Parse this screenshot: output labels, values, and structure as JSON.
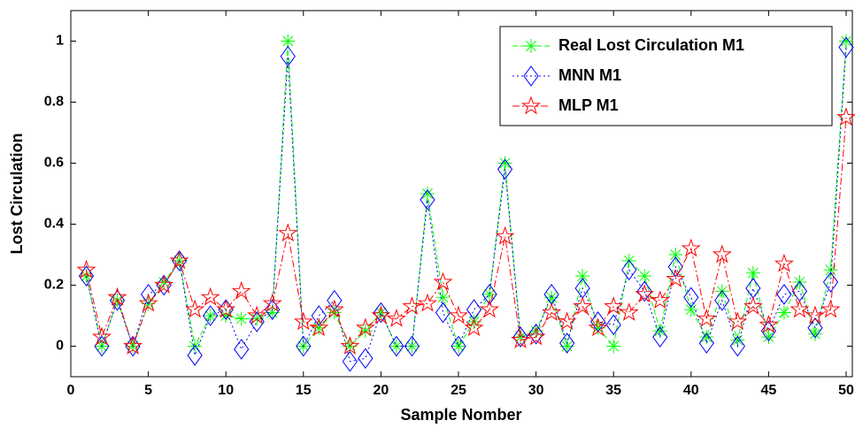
{
  "chart_data": {
    "type": "line",
    "x_label": "Sample Nomber",
    "y_label": "Lost Circulation",
    "x": [
      1,
      2,
      3,
      4,
      5,
      6,
      7,
      8,
      9,
      10,
      11,
      12,
      13,
      14,
      15,
      16,
      17,
      18,
      19,
      20,
      21,
      22,
      23,
      24,
      25,
      26,
      27,
      28,
      29,
      30,
      31,
      32,
      33,
      34,
      35,
      36,
      37,
      38,
      39,
      40,
      41,
      42,
      43,
      44,
      45,
      46,
      47,
      48,
      49,
      50
    ],
    "series": [
      {
        "name": "Real Lost Circulation M1",
        "color": "#00ff00",
        "marker": "asterisk",
        "dash": "6 3",
        "values": [
          0.23,
          0.0,
          0.15,
          0.0,
          0.14,
          0.21,
          0.28,
          0.0,
          0.1,
          0.1,
          0.09,
          0.09,
          0.11,
          1.0,
          0.0,
          0.06,
          0.11,
          0.0,
          0.05,
          0.11,
          0.0,
          0.0,
          0.5,
          0.16,
          0.0,
          0.08,
          0.17,
          0.6,
          0.03,
          0.05,
          0.16,
          0.0,
          0.23,
          0.06,
          0.0,
          0.28,
          0.23,
          0.05,
          0.3,
          0.12,
          0.03,
          0.18,
          0.02,
          0.24,
          0.03,
          0.11,
          0.21,
          0.04,
          0.25,
          1.0
        ]
      },
      {
        "name": "MNN M1",
        "color": "#0000ff",
        "marker": "diamond",
        "dash": "2 3",
        "values": [
          0.23,
          0.0,
          0.15,
          0.0,
          0.17,
          0.2,
          0.28,
          -0.03,
          0.1,
          0.12,
          -0.01,
          0.08,
          0.12,
          0.95,
          0.0,
          0.1,
          0.15,
          -0.05,
          -0.04,
          0.11,
          0.0,
          0.0,
          0.48,
          0.11,
          0.0,
          0.12,
          0.17,
          0.58,
          0.03,
          0.04,
          0.17,
          0.01,
          0.19,
          0.08,
          0.07,
          0.25,
          0.18,
          0.03,
          0.26,
          0.16,
          0.01,
          0.15,
          0.0,
          0.19,
          0.05,
          0.17,
          0.18,
          0.06,
          0.21,
          0.98
        ]
      },
      {
        "name": "MLP M1",
        "color": "#ff0000",
        "marker": "pentagram",
        "dash": "8 3 2 3",
        "values": [
          0.25,
          0.03,
          0.16,
          0.0,
          0.14,
          0.2,
          0.28,
          0.12,
          0.16,
          0.12,
          0.18,
          0.1,
          0.14,
          0.37,
          0.08,
          0.06,
          0.12,
          0.0,
          0.06,
          0.1,
          0.09,
          0.13,
          0.14,
          0.21,
          0.1,
          0.06,
          0.12,
          0.36,
          0.02,
          0.03,
          0.11,
          0.08,
          0.13,
          0.06,
          0.13,
          0.11,
          0.17,
          0.15,
          0.22,
          0.32,
          0.09,
          0.3,
          0.08,
          0.13,
          0.07,
          0.27,
          0.12,
          0.1,
          0.12,
          0.75
        ]
      }
    ],
    "xlim": [
      0,
      50.4
    ],
    "xticks": [
      0,
      5,
      10,
      15,
      20,
      25,
      30,
      35,
      40,
      45,
      50
    ],
    "ylim": [
      -0.1,
      1.1
    ],
    "yticks": [
      0,
      0.2,
      0.4,
      0.6,
      0.8,
      1
    ],
    "grid": false,
    "legend": "upper right"
  }
}
